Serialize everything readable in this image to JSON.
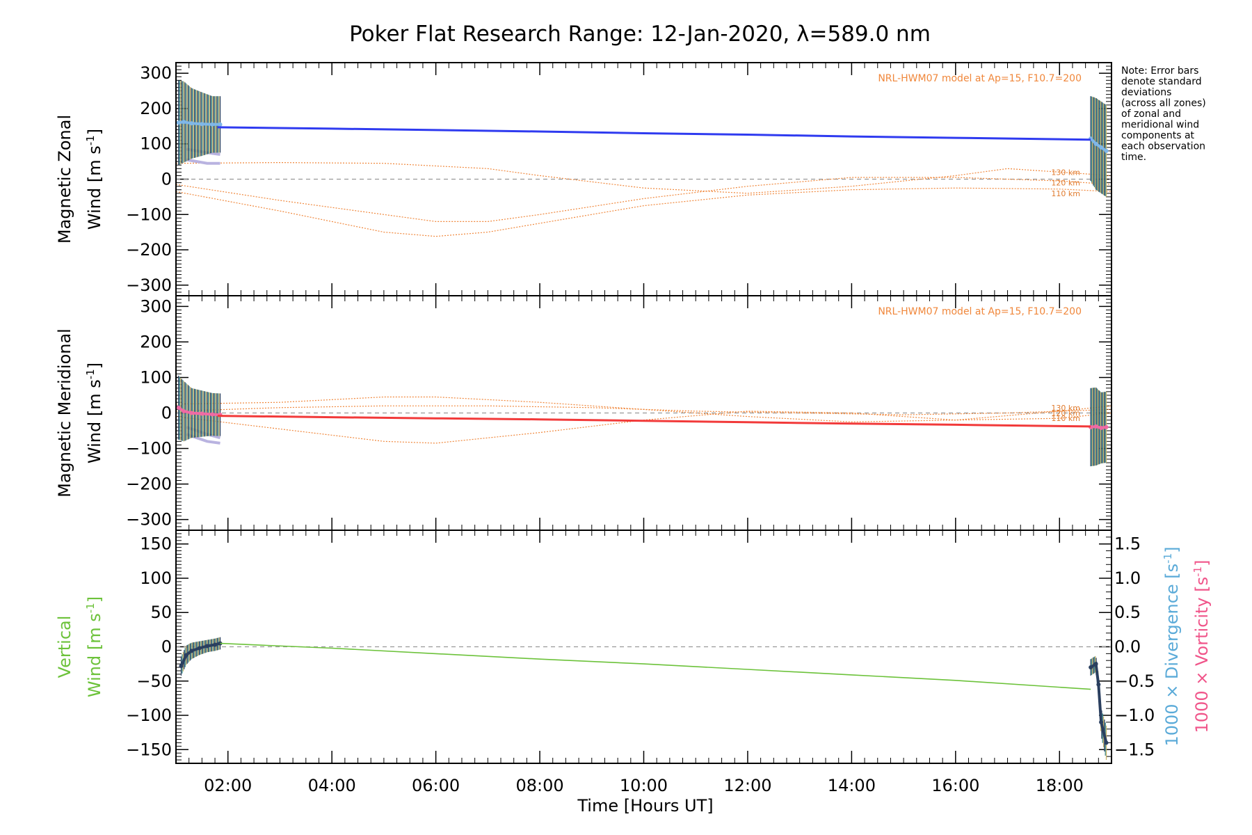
{
  "colors": {
    "zonal_fit": "#2f3bf0",
    "meridional_fit": "#f23a3a",
    "vertical_fit": "#6cc23a",
    "model": "#f0873b",
    "divergence_label": "#5aaad8",
    "vorticity_label": "#f0558a",
    "zone_scatter": "#7fb7e8",
    "zone_scatter_m": "#f06aa4",
    "errorbar_teal": "#3d8c8f",
    "errorbar_dark": "#2a3f5f",
    "lavender": "#b9b3e0",
    "zeroline": "#999999"
  },
  "chart_data": {
    "type": "line",
    "title": "Poker Flat Research Range: 12-Jan-2020, λ=589.0 nm",
    "xlabel": "Time [Hours UT]",
    "xlim": [
      1.0,
      19.0
    ],
    "xtick_values": [
      2,
      4,
      6,
      8,
      10,
      12,
      14,
      16,
      18
    ],
    "xtick_labels": [
      "02:00",
      "04:00",
      "06:00",
      "08:00",
      "10:00",
      "12:00",
      "14:00",
      "16:00",
      "18:00"
    ],
    "note": [
      "Note: Error bars",
      "denote standard",
      "deviations",
      "(across all zones)",
      "of zonal and",
      "meridional wind",
      "components at",
      "each observation",
      "time."
    ],
    "panels": [
      {
        "id": "zonal",
        "ylabel_line1": "Magnetic Zonal",
        "ylabel_line2": "Wind [m s",
        "ylabel_sup": "-1",
        "ylabel_close": "]",
        "ylim": [
          -330,
          330
        ],
        "yticks": [
          300,
          200,
          100,
          0,
          -100,
          -200,
          -300
        ],
        "ytick_labels": [
          "300",
          "200",
          "100",
          "0",
          "−100",
          "−200",
          "−300"
        ],
        "model_label": "NRL-HWM07 model at Ap=15, F10.7=200",
        "altitude_labels": [
          {
            "text": "130 km",
            "value": 20
          },
          {
            "text": "120 km",
            "value": -10
          },
          {
            "text": "110 km",
            "value": -40
          }
        ],
        "fit": {
          "x": [
            1.8,
            4,
            6,
            8,
            10,
            12,
            14,
            16,
            18.6
          ],
          "y": [
            147,
            143,
            139,
            135,
            130,
            126,
            121,
            117,
            112
          ]
        },
        "obs_segments": [
          {
            "x": [
              1.05,
              1.15,
              1.3,
              1.5,
              1.7,
              1.85
            ],
            "y": [
              160,
              162,
              158,
              156,
              155,
              155
            ],
            "err": [
              120,
              115,
              100,
              90,
              80,
              80
            ]
          },
          {
            "x": [
              18.6,
              18.7,
              18.8,
              18.9
            ],
            "y": [
              115,
              100,
              90,
              80
            ],
            "err": [
              120,
              130,
              130,
              130
            ]
          }
        ],
        "zone_spread": [
          {
            "x": [
              1.2,
              1.4,
              1.6,
              1.85
            ],
            "y": [
              85,
              80,
              75,
              70
            ]
          },
          {
            "x": [
              1.2,
              1.4,
              1.6,
              1.85
            ],
            "y": [
              55,
              50,
              45,
              45
            ]
          }
        ],
        "model_curves": [
          {
            "name": "130 km",
            "x": [
              1,
              3,
              5,
              7,
              8,
              10,
              12,
              14,
              16,
              17,
              18,
              19
            ],
            "y": [
              45,
              47,
              45,
              30,
              10,
              -25,
              -40,
              -20,
              10,
              30,
              20,
              10
            ]
          },
          {
            "name": "120 km",
            "x": [
              1,
              3,
              5,
              6,
              7,
              8,
              10,
              12,
              14,
              16,
              18,
              19
            ],
            "y": [
              -15,
              -60,
              -100,
              -120,
              -120,
              -100,
              -55,
              -20,
              5,
              5,
              -5,
              -15
            ]
          },
          {
            "name": "110 km",
            "x": [
              1,
              3,
              5,
              6,
              7,
              8,
              10,
              12,
              14,
              16,
              18,
              19
            ],
            "y": [
              -35,
              -90,
              -150,
              -162,
              -150,
              -125,
              -75,
              -45,
              -30,
              -25,
              -28,
              -35
            ]
          }
        ]
      },
      {
        "id": "meridional",
        "ylabel_line1": "Magnetic Meridional",
        "ylabel_line2": "Wind [m s",
        "ylabel_sup": "-1",
        "ylabel_close": "]",
        "ylim": [
          -330,
          330
        ],
        "yticks": [
          300,
          200,
          100,
          0,
          -100,
          -200,
          -300
        ],
        "ytick_labels": [
          "300",
          "200",
          "100",
          "0",
          "−100",
          "−200",
          "−300"
        ],
        "model_label": "NRL-HWM07 model at Ap=15, F10.7=200",
        "altitude_labels": [
          {
            "text": "130 km",
            "value": 15
          },
          {
            "text": "120 km",
            "value": 0
          },
          {
            "text": "110 km",
            "value": -15
          }
        ],
        "fit": {
          "x": [
            1.8,
            4,
            6,
            8,
            10,
            12,
            14,
            16,
            18.6
          ],
          "y": [
            -8,
            -12,
            -15,
            -18,
            -22,
            -26,
            -30,
            -33,
            -38
          ]
        },
        "obs_segments": [
          {
            "x": [
              1.05,
              1.15,
              1.3,
              1.5,
              1.7,
              1.85
            ],
            "y": [
              15,
              5,
              0,
              -2,
              -4,
              -5
            ],
            "err": [
              90,
              85,
              70,
              65,
              60,
              60
            ]
          },
          {
            "x": [
              18.6,
              18.7,
              18.8,
              18.9
            ],
            "y": [
              -40,
              -38,
              -42,
              -40
            ],
            "err": [
              110,
              110,
              100,
              100
            ]
          }
        ],
        "zone_spread": [
          {
            "x": [
              1.2,
              1.4,
              1.6,
              1.85
            ],
            "y": [
              -40,
              -50,
              -60,
              -70
            ]
          },
          {
            "x": [
              1.2,
              1.4,
              1.6,
              1.85
            ],
            "y": [
              -60,
              -70,
              -80,
              -85
            ]
          }
        ],
        "model_curves": [
          {
            "name": "130 km",
            "x": [
              1,
              3,
              5,
              6,
              8,
              10,
              12,
              14,
              16,
              18,
              19
            ],
            "y": [
              25,
              30,
              45,
              45,
              30,
              10,
              -10,
              -25,
              -20,
              5,
              20
            ]
          },
          {
            "name": "120 km",
            "x": [
              1,
              3,
              5,
              7,
              9,
              11,
              13,
              15,
              17,
              19
            ],
            "y": [
              5,
              15,
              20,
              20,
              15,
              5,
              0,
              -5,
              0,
              10
            ]
          },
          {
            "name": "110 km",
            "x": [
              1,
              3,
              5,
              6,
              8,
              10,
              12,
              14,
              16,
              18,
              19
            ],
            "y": [
              -10,
              -45,
              -80,
              -85,
              -55,
              -20,
              5,
              0,
              -20,
              -15,
              0
            ]
          }
        ]
      },
      {
        "id": "vertical",
        "ylabel_line1": "Vertical",
        "ylabel_line2": "Wind [m s",
        "ylabel_sup": "-1",
        "ylabel_close": "]",
        "ylim": [
          -170,
          170
        ],
        "yticks": [
          150,
          100,
          50,
          0,
          -50,
          -100,
          -150
        ],
        "ytick_labels": [
          "150",
          "100",
          "50",
          "0",
          "−50",
          "−100",
          "−150"
        ],
        "right_axis": {
          "ylim": [
            -1.7,
            1.7
          ],
          "yticks": [
            1.5,
            1.0,
            0.5,
            0.0,
            -0.5,
            -1.0,
            -1.5
          ],
          "ytick_labels": [
            "1.5",
            "1.0",
            "0.5",
            "0.0",
            "−0.5",
            "−1.0",
            "−1.5"
          ],
          "label_divergence": "1000 × Divergence [s",
          "label_vorticity": "1000 × Vorticity [s",
          "sup": "-1",
          "close": "]"
        },
        "fit": {
          "x": [
            1.85,
            4,
            6,
            8,
            10,
            12,
            14,
            16,
            18.6
          ],
          "y": [
            5,
            -2,
            -10,
            -18,
            -25,
            -33,
            -41,
            -49,
            -62
          ]
        },
        "obs_segments": [
          {
            "x": [
              1.1,
              1.2,
              1.3,
              1.45,
              1.6,
              1.75,
              1.85
            ],
            "y": [
              -28,
              -12,
              -6,
              -2,
              1,
              3,
              5
            ],
            "err": [
              14,
              14,
              12,
              10,
              9,
              9,
              9
            ]
          },
          {
            "x": [
              18.6,
              18.7,
              18.75,
              18.8,
              18.9
            ],
            "y": [
              -30,
              -25,
              -55,
              -110,
              -140
            ],
            "err": [
              12,
              12,
              15,
              20,
              25
            ]
          }
        ]
      }
    ]
  }
}
